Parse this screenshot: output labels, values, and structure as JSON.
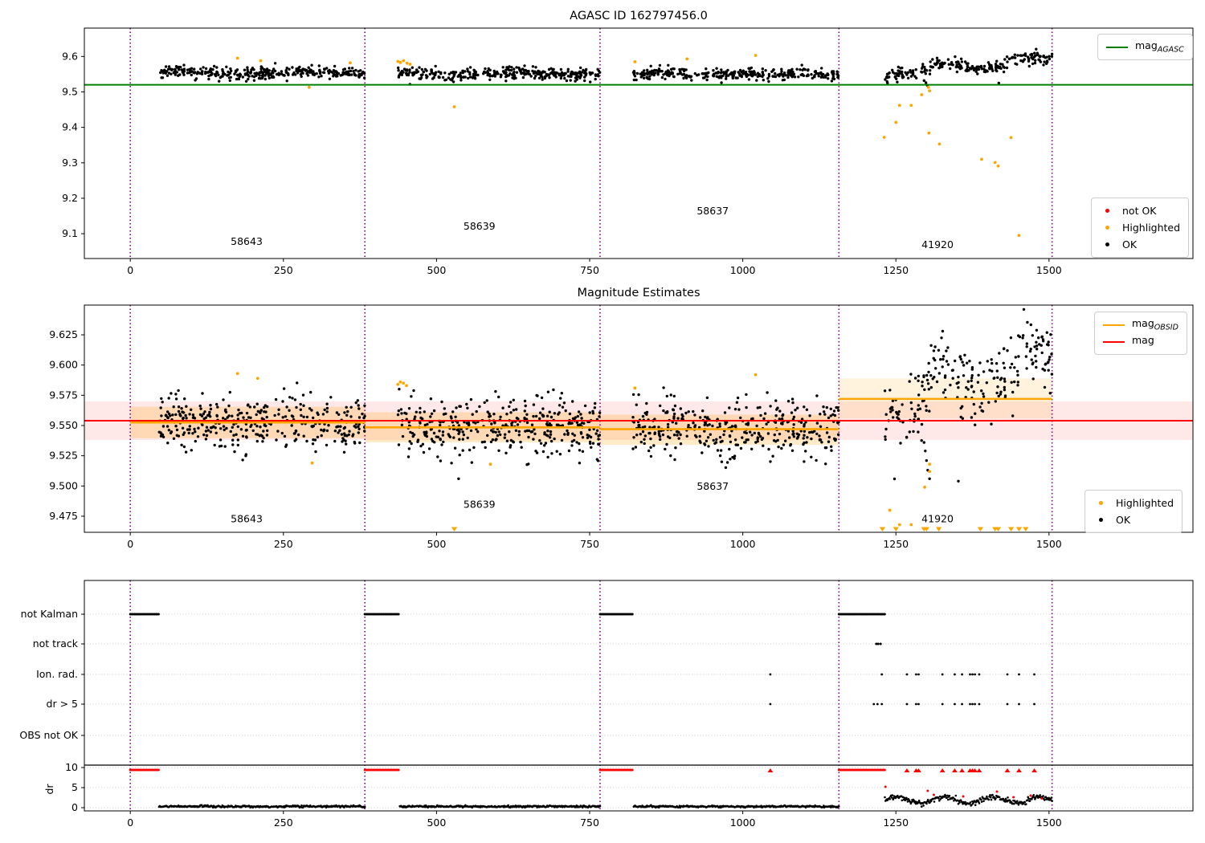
{
  "colors": {
    "background": "#ffffff",
    "ok": "#000000",
    "not_ok": "#ff0000",
    "highlighted": "#ffa500",
    "mag_agasc": "#008000",
    "mag": "#ff0000",
    "mag_obsid": "#ffa500",
    "obsid_divider": "#800080",
    "grid": "#c8c8c8",
    "band_mag": "rgba(255,0,0,0.09)",
    "band_obsid": "rgba(255,165,0,0.22)",
    "band_obsid_light": "rgba(255,165,0,0.13)"
  },
  "chart_data": [
    {
      "type": "scatter",
      "title": "AGASC ID 162797456.0",
      "xlim": [
        -75,
        1735
      ],
      "ylim": [
        9.03,
        9.68
      ],
      "xticks": [
        0,
        250,
        500,
        750,
        1000,
        1250,
        1500
      ],
      "yticks": [
        9.1,
        9.2,
        9.3,
        9.4,
        9.5,
        9.6
      ],
      "hline": {
        "label": {
          "text": "mag",
          "sub": "AGASC"
        },
        "value": 9.52,
        "color": "#008000"
      },
      "legend2": {
        "entries": [
          {
            "label": "not OK",
            "color": "#ff0000"
          },
          {
            "label": "Highlighted",
            "color": "#ffa500"
          },
          {
            "label": "OK",
            "color": "#000000"
          }
        ]
      },
      "obsid_dividers": [
        0,
        383,
        767,
        1157,
        1505
      ],
      "obsid_labels": [
        {
          "id": "58643",
          "x": 190,
          "y": 9.068
        },
        {
          "id": "58639",
          "x": 570,
          "y": 9.112
        },
        {
          "id": "58637",
          "x": 951,
          "y": 9.155
        },
        {
          "id": "41920",
          "x": 1318,
          "y": 9.059
        }
      ],
      "ok_segments": [
        {
          "x_range": [
            47,
            383
          ],
          "n": 330,
          "mean": 9.5545,
          "sigma": 0.0085,
          "wave_amp": 0.003,
          "wave_k": 0.03,
          "wave_phase": 1.0,
          "trend": 0
        },
        {
          "x_range": [
            437,
            767
          ],
          "n": 330,
          "mean": 9.5515,
          "sigma": 0.009,
          "wave_amp": 0.003,
          "wave_k": 0.03,
          "wave_phase": 2.0,
          "trend": 0
        },
        {
          "x_range": [
            820,
            1157
          ],
          "n": 320,
          "mean": 9.5505,
          "sigma": 0.008,
          "wave_amp": 0.0025,
          "wave_k": 0.03,
          "wave_phase": 0.0,
          "trend": 0
        },
        {
          "x_range": [
            1232,
            1505
          ],
          "n": 238,
          "mean": 9.556,
          "sigma": 0.009,
          "wave_amp": 0.012,
          "wave_k": 0.045,
          "wave_phase": 3.6,
          "trend": 0.00013
        }
      ],
      "ok_extra": [
        [
          1296,
          9.532
        ],
        [
          1299,
          9.526
        ],
        [
          1301,
          9.519
        ],
        [
          1418,
          9.525
        ]
      ],
      "highlighted": [
        [
          175,
          9.595
        ],
        [
          213,
          9.588
        ],
        [
          292,
          9.513
        ],
        [
          359,
          9.582
        ],
        [
          437,
          9.586
        ],
        [
          441,
          9.583
        ],
        [
          446,
          9.588
        ],
        [
          452,
          9.581
        ],
        [
          457,
          9.578
        ],
        [
          529,
          9.458
        ],
        [
          824,
          9.585
        ],
        [
          909,
          9.593
        ],
        [
          1021,
          9.603
        ],
        [
          1231,
          9.372
        ],
        [
          1250,
          9.414
        ],
        [
          1256,
          9.462
        ],
        [
          1275,
          9.462
        ],
        [
          1292,
          9.492
        ],
        [
          1303,
          9.513
        ],
        [
          1305,
          9.503
        ],
        [
          1304,
          9.384
        ],
        [
          1321,
          9.353
        ],
        [
          1390,
          9.31
        ],
        [
          1412,
          9.301
        ],
        [
          1417,
          9.291
        ],
        [
          1438,
          9.371
        ],
        [
          1451,
          9.095
        ]
      ]
    },
    {
      "type": "scatter",
      "title": "Magnitude Estimates",
      "xlim": [
        -75,
        1735
      ],
      "ylim": [
        9.4617,
        9.6496
      ],
      "xticks": [
        0,
        250,
        500,
        750,
        1000,
        1250,
        1500
      ],
      "yticks": [
        9.475,
        9.5,
        9.525,
        9.55,
        9.575,
        9.6,
        9.625
      ],
      "mag": {
        "label": {
          "text": "mag",
          "sub": ""
        },
        "value": 9.554,
        "band": [
          9.538,
          9.57
        ],
        "color": "#ff0000"
      },
      "mag_obsid_label": {
        "text": "mag",
        "sub": "OBSID"
      },
      "legend2": {
        "entries": [
          {
            "label": "Highlighted",
            "color": "#ffa500"
          },
          {
            "label": "OK",
            "color": "#000000"
          }
        ]
      },
      "obsid_dividers": [
        0,
        383,
        767,
        1157,
        1505
      ],
      "obsids": [
        {
          "id": "58643",
          "x_range": [
            0,
            383
          ],
          "mag_obsid": 9.5525,
          "band": [
            9.5395,
            9.5655
          ],
          "label_x": 190,
          "label_y": 9.47,
          "band_light": false
        },
        {
          "id": "58639",
          "x_range": [
            383,
            767
          ],
          "mag_obsid": 9.5485,
          "band": [
            9.536,
            9.561
          ],
          "label_x": 570,
          "label_y": 9.482,
          "band_light": false
        },
        {
          "id": "58637",
          "x_range": [
            767,
            1157
          ],
          "mag_obsid": 9.547,
          "band": [
            9.534,
            9.559
          ],
          "label_x": 951,
          "label_y": 9.497,
          "band_light": false
        },
        {
          "id": "41920",
          "x_range": [
            1157,
            1505
          ],
          "mag_obsid": 9.572,
          "band": [
            9.556,
            9.589
          ],
          "label_x": 1318,
          "label_y": 9.47,
          "band_light": true
        }
      ],
      "ok_segments": [
        {
          "x_range": [
            47,
            383
          ],
          "n": 360,
          "mean": 9.552,
          "sigma": 0.011,
          "wave_amp": 0.002,
          "wave_k": 0.03,
          "wave_phase": 1.0,
          "trend": 0
        },
        {
          "x_range": [
            437,
            767
          ],
          "n": 370,
          "mean": 9.549,
          "sigma": 0.012,
          "wave_amp": 0.002,
          "wave_k": 0.03,
          "wave_phase": 2.0,
          "trend": 0
        },
        {
          "x_range": [
            820,
            1157
          ],
          "n": 360,
          "mean": 9.548,
          "sigma": 0.012,
          "wave_amp": 0.002,
          "wave_k": 0.03,
          "wave_phase": 0.0,
          "trend": 0
        },
        {
          "x_range": [
            1232,
            1505
          ],
          "n": 245,
          "mean": 9.565,
          "sigma": 0.015,
          "wave_amp": 0.012,
          "wave_k": 0.045,
          "wave_phase": 3.6,
          "trend": 0.00016
        }
      ],
      "ok_extra": [
        [
          1296,
          9.536
        ],
        [
          1298,
          9.529
        ],
        [
          1300,
          9.521
        ],
        [
          1302,
          9.513
        ],
        [
          1305,
          9.506
        ],
        [
          1352,
          9.504
        ],
        [
          536,
          9.506
        ]
      ],
      "highlighted": [
        [
          175,
          9.593
        ],
        [
          208,
          9.589
        ],
        [
          297,
          9.519
        ],
        [
          437,
          9.584
        ],
        [
          441,
          9.586
        ],
        [
          446,
          9.585
        ],
        [
          451,
          9.583
        ],
        [
          588,
          9.518
        ],
        [
          824,
          9.581
        ],
        [
          1021,
          9.592
        ],
        [
          1240,
          9.48
        ],
        [
          1256,
          9.468
        ],
        [
          1275,
          9.468
        ],
        [
          1297,
          9.499
        ],
        [
          1305,
          9.518
        ],
        [
          1305,
          9.512
        ]
      ],
      "clipped_low_x": [
        529,
        1228,
        1250,
        1296,
        1300,
        1320,
        1388,
        1412,
        1417,
        1438,
        1451,
        1462
      ]
    },
    {
      "type": "event-raster",
      "categories": [
        "not Kalman",
        "not track",
        "Ion. rad.",
        "dr > 5",
        "OBS not OK"
      ],
      "xlim": [
        -75,
        1735
      ],
      "xticks": [
        0,
        250,
        500,
        750,
        1000,
        1250,
        1500
      ],
      "obsid_dividers": [
        0,
        383,
        767,
        1157,
        1505
      ],
      "not_kalman_runs": [
        [
          0,
          47
        ],
        [
          383,
          440
        ],
        [
          767,
          822
        ],
        [
          1157,
          1232
        ]
      ],
      "not_track_xs": [
        1218,
        1221,
        1225
      ],
      "ion_rad_xs": [
        1045,
        1227,
        1268,
        1283,
        1287,
        1326,
        1346,
        1358,
        1371,
        1375,
        1379,
        1386,
        1432,
        1451,
        1476
      ],
      "dr_gt5_xs": [
        1045,
        1214,
        1220,
        1227,
        1268,
        1283,
        1287,
        1326,
        1346,
        1358,
        1371,
        1375,
        1379,
        1386,
        1432,
        1451,
        1476
      ],
      "obs_not_ok_xs": [],
      "dr_axis": {
        "label": "dr",
        "ticks": [
          0,
          5,
          10
        ],
        "threshold": 10
      },
      "dr10_runs": [
        [
          0,
          47
        ],
        [
          383,
          440
        ],
        [
          767,
          822
        ],
        [
          1157,
          1232
        ]
      ],
      "dr_clipped_xs": [
        1045,
        1268,
        1283,
        1287,
        1326,
        1346,
        1358,
        1371,
        1375,
        1379,
        1386,
        1432,
        1451,
        1476
      ],
      "dr_trace_segments": [
        {
          "x_range": [
            47,
            383
          ],
          "n": 310,
          "base": 0.3,
          "noise": 0.12,
          "wave_amp": 0,
          "wave_k": 0
        },
        {
          "x_range": [
            440,
            767
          ],
          "n": 300,
          "base": 0.3,
          "noise": 0.12,
          "wave_amp": 0,
          "wave_k": 0
        },
        {
          "x_range": [
            822,
            1157
          ],
          "n": 310,
          "base": 0.3,
          "noise": 0.12,
          "wave_amp": 0,
          "wave_k": 0
        },
        {
          "x_range": [
            1232,
            1505
          ],
          "n": 265,
          "base": 1.9,
          "noise": 0.33,
          "wave_amp": 0.8,
          "wave_k": 0.08
        }
      ],
      "dr_red_points": [
        [
          1233,
          5.2
        ],
        [
          1302,
          4.2
        ],
        [
          1312,
          3.2
        ],
        [
          1360,
          2.8
        ],
        [
          1415,
          4.0
        ],
        [
          1442,
          2.6
        ],
        [
          1470,
          3.0
        ],
        [
          1488,
          2.3
        ]
      ]
    }
  ]
}
